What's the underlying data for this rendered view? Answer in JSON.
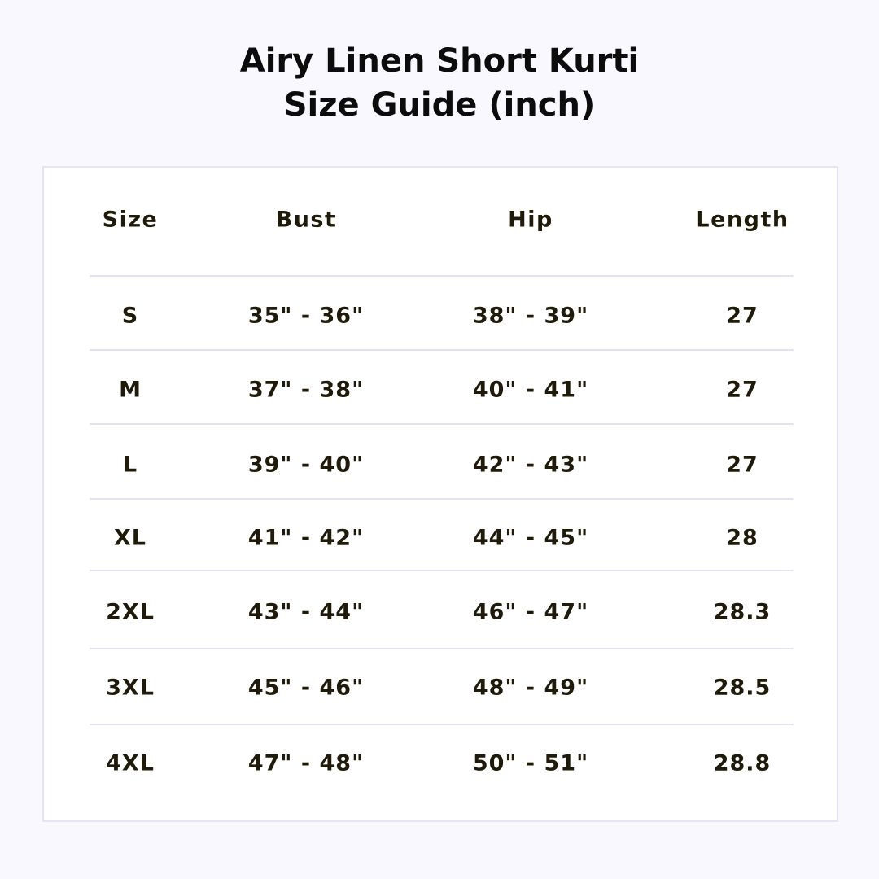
{
  "title": {
    "line1": "Airy Linen Short Kurti",
    "line2": "Size Guide (inch)"
  },
  "table": {
    "headers": [
      "Size",
      "Bust",
      "Hip",
      "Length"
    ],
    "rows": [
      [
        "S",
        "35\" - 36\"",
        "38\" - 39\"",
        "27"
      ],
      [
        "M",
        "37\" - 38\"",
        "40\" - 41\"",
        "27"
      ],
      [
        "L",
        "39\" - 40\"",
        "42\" - 43\"",
        "27"
      ],
      [
        "XL",
        "41\" - 42\"",
        "44\" - 45\"",
        "28"
      ],
      [
        "2XL",
        "43\" - 44\"",
        "46\" - 47\"",
        "28.3"
      ],
      [
        "3XL",
        "45\" - 46\"",
        "48\" - 49\"",
        "28.5"
      ],
      [
        "4XL",
        "47\" - 48\"",
        "50\" - 51\"",
        "28.8"
      ]
    ]
  },
  "colors": {
    "background": "#f8f8fe",
    "text": "#1f1a0a",
    "divider": "#e2e2f2"
  }
}
